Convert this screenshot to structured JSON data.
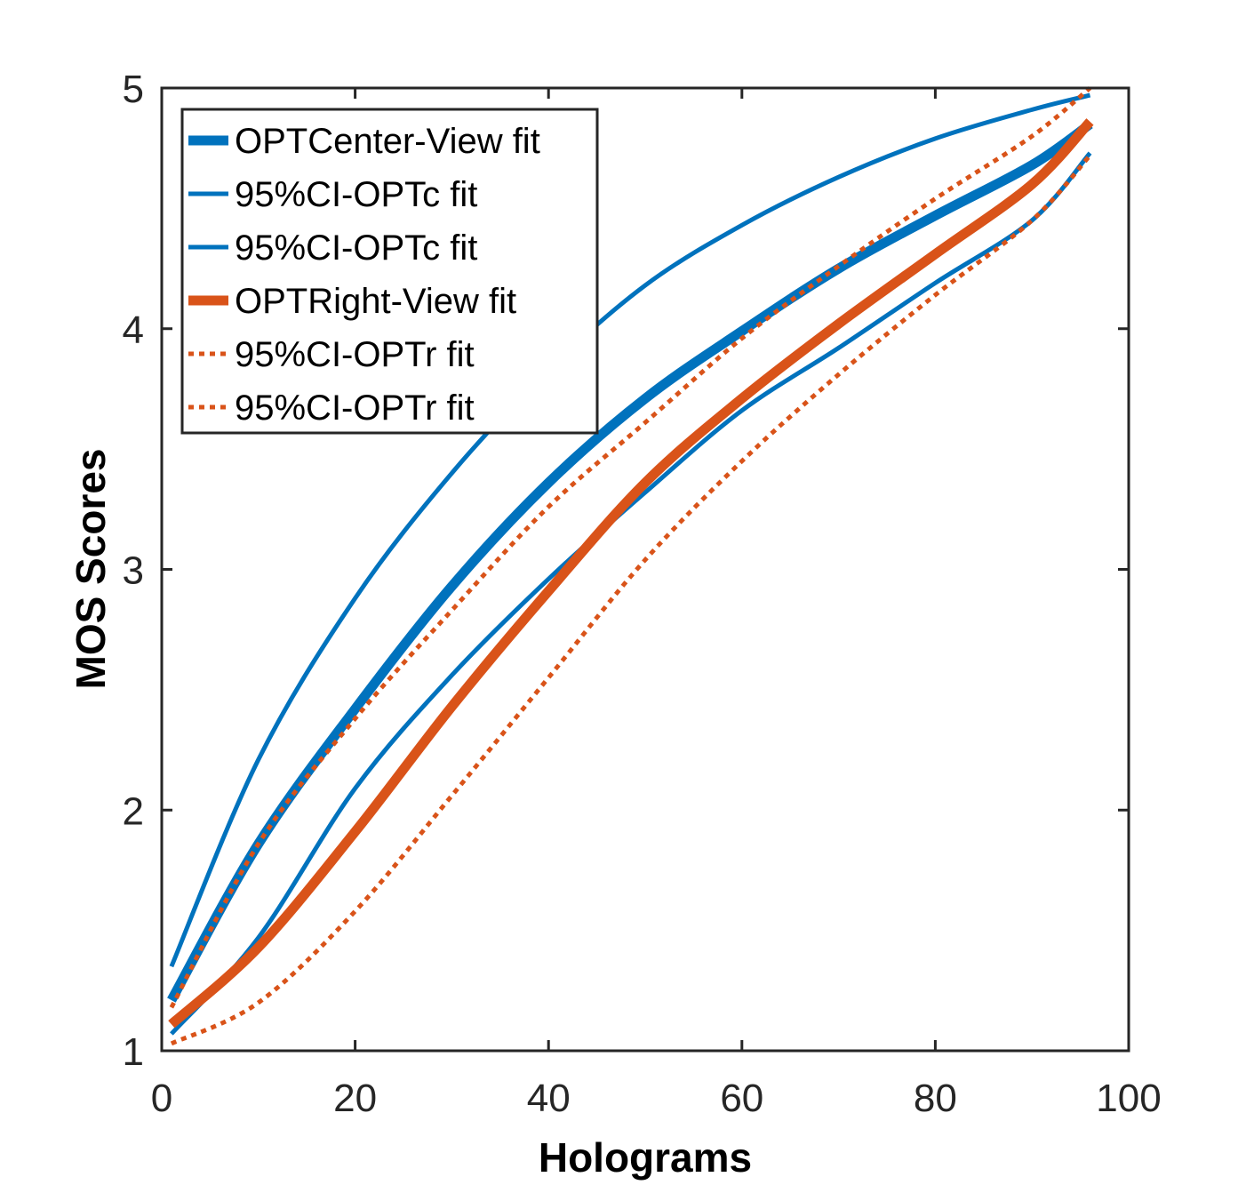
{
  "chart_data": {
    "type": "line",
    "title": "",
    "xlabel": "Holograms",
    "ylabel": "MOS Scores",
    "xlim": [
      0,
      100
    ],
    "ylim": [
      1,
      5
    ],
    "xticks": [
      0,
      20,
      40,
      60,
      80,
      100
    ],
    "yticks": [
      1,
      2,
      3,
      4,
      5
    ],
    "grid": false,
    "legend_position": "top-left",
    "x": [
      1,
      10,
      20,
      30,
      40,
      50,
      60,
      70,
      80,
      90,
      96
    ],
    "series": [
      {
        "name": "OPTCenter-View fit",
        "color": "#0072BD",
        "style": "solid",
        "weight": "thick",
        "values": [
          1.21,
          1.86,
          2.42,
          2.93,
          3.36,
          3.71,
          3.99,
          4.25,
          4.47,
          4.68,
          4.85
        ]
      },
      {
        "name": "95%CI-OPTc fit",
        "color": "#0072BD",
        "style": "solid",
        "weight": "thin",
        "values": [
          1.35,
          2.21,
          2.88,
          3.4,
          3.83,
          4.18,
          4.43,
          4.63,
          4.79,
          4.91,
          4.97
        ]
      },
      {
        "name": "95%CI-OPTc fit",
        "color": "#0072BD",
        "style": "solid",
        "weight": "thin",
        "values": [
          1.07,
          1.47,
          2.09,
          2.56,
          2.96,
          3.32,
          3.66,
          3.92,
          4.19,
          4.45,
          4.73
        ]
      },
      {
        "name": "OPTRight-View fit",
        "color": "#D95319",
        "style": "solid",
        "weight": "thick",
        "values": [
          1.11,
          1.43,
          1.91,
          2.43,
          2.91,
          3.36,
          3.71,
          4.02,
          4.31,
          4.6,
          4.86
        ]
      },
      {
        "name": "95%CI-OPTr fit",
        "color": "#D95319",
        "style": "dotted",
        "weight": "thin",
        "values": [
          1.18,
          1.86,
          2.38,
          2.83,
          3.26,
          3.61,
          3.96,
          4.26,
          4.54,
          4.8,
          5.0
        ]
      },
      {
        "name": "95%CI-OPTr fit",
        "color": "#D95319",
        "style": "dotted",
        "weight": "thin",
        "values": [
          1.03,
          1.2,
          1.58,
          2.06,
          2.55,
          3.04,
          3.45,
          3.81,
          4.14,
          4.45,
          4.72
        ]
      }
    ]
  }
}
